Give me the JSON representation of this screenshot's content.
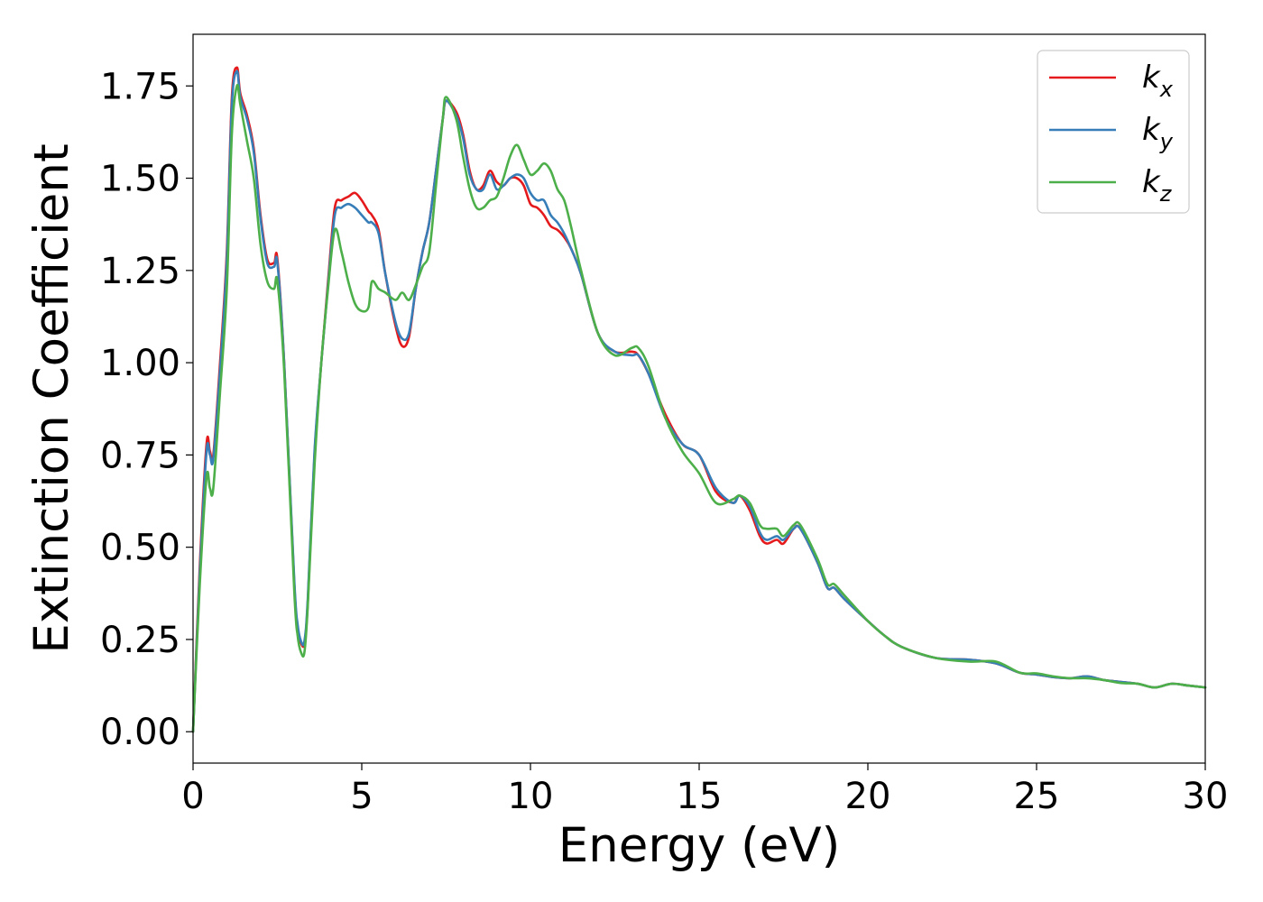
{
  "chart_data": {
    "type": "line",
    "title": "",
    "xlabel": "Energy (eV)",
    "ylabel": "Extinction Coefficient",
    "xlim": [
      0,
      30
    ],
    "ylim": [
      -0.085,
      1.89
    ],
    "xticks": [
      0,
      5,
      10,
      15,
      20,
      25,
      30
    ],
    "xtick_labels": [
      "0",
      "5",
      "10",
      "15",
      "20",
      "25",
      "30"
    ],
    "yticks": [
      0.0,
      0.25,
      0.5,
      0.75,
      1.0,
      1.25,
      1.5,
      1.75
    ],
    "ytick_labels": [
      "0.00",
      "0.25",
      "0.50",
      "0.75",
      "1.00",
      "1.25",
      "1.50",
      "1.75"
    ],
    "grid": false,
    "legend_position": "top-right",
    "series": [
      {
        "name": "k_x",
        "legend_main": "k",
        "legend_sub": "x",
        "color": "#e41a1c",
        "x": [
          0,
          0.2,
          0.4,
          0.5,
          0.6,
          0.8,
          1.0,
          1.15,
          1.3,
          1.4,
          1.6,
          1.8,
          2.0,
          2.2,
          2.4,
          2.5,
          2.7,
          3.0,
          3.1,
          3.2,
          3.3,
          3.4,
          3.6,
          3.8,
          4.0,
          4.2,
          4.4,
          4.6,
          4.8,
          5.0,
          5.2,
          5.3,
          5.5,
          5.7,
          6.0,
          6.2,
          6.4,
          6.6,
          6.8,
          7.0,
          7.2,
          7.4,
          7.5,
          7.8,
          8.0,
          8.2,
          8.4,
          8.6,
          8.8,
          9.0,
          9.2,
          9.4,
          9.6,
          9.8,
          10.0,
          10.2,
          10.4,
          10.6,
          10.8,
          11.0,
          11.2,
          11.5,
          12.0,
          12.5,
          13.0,
          13.2,
          13.5,
          14.0,
          14.5,
          15.0,
          15.5,
          16.0,
          16.2,
          16.5,
          16.8,
          17.0,
          17.3,
          17.5,
          17.8,
          18.0,
          18.5,
          18.8,
          19.0,
          19.3,
          20.0,
          20.5,
          21.0,
          22.0,
          23.0,
          23.8,
          24.5,
          25.0,
          25.5,
          26.0,
          26.5,
          27.0,
          27.5,
          28.0,
          28.5,
          29.0,
          29.5,
          30.0
        ],
        "y": [
          0.0,
          0.45,
          0.78,
          0.76,
          0.75,
          1.0,
          1.3,
          1.72,
          1.8,
          1.73,
          1.67,
          1.58,
          1.4,
          1.28,
          1.27,
          1.28,
          1.0,
          0.4,
          0.28,
          0.24,
          0.24,
          0.35,
          0.75,
          1.0,
          1.22,
          1.42,
          1.44,
          1.45,
          1.46,
          1.44,
          1.41,
          1.4,
          1.36,
          1.24,
          1.1,
          1.045,
          1.07,
          1.2,
          1.3,
          1.38,
          1.52,
          1.66,
          1.71,
          1.68,
          1.62,
          1.52,
          1.47,
          1.48,
          1.52,
          1.49,
          1.48,
          1.5,
          1.5,
          1.48,
          1.43,
          1.42,
          1.4,
          1.37,
          1.36,
          1.34,
          1.31,
          1.24,
          1.08,
          1.03,
          1.03,
          1.02,
          0.97,
          0.86,
          0.78,
          0.75,
          0.65,
          0.62,
          0.64,
          0.6,
          0.53,
          0.51,
          0.52,
          0.51,
          0.55,
          0.55,
          0.46,
          0.39,
          0.39,
          0.36,
          0.3,
          0.26,
          0.23,
          0.2,
          0.195,
          0.185,
          0.16,
          0.155,
          0.148,
          0.145,
          0.15,
          0.14,
          0.135,
          0.13,
          0.12,
          0.13,
          0.125,
          0.12
        ]
      },
      {
        "name": "k_y",
        "legend_main": "k",
        "legend_sub": "y",
        "color": "#377eb8",
        "x": [
          0,
          0.2,
          0.4,
          0.5,
          0.6,
          0.8,
          1.0,
          1.15,
          1.3,
          1.4,
          1.6,
          1.8,
          2.0,
          2.2,
          2.4,
          2.5,
          2.7,
          3.0,
          3.1,
          3.2,
          3.3,
          3.4,
          3.6,
          3.8,
          4.0,
          4.2,
          4.4,
          4.6,
          4.8,
          5.0,
          5.2,
          5.3,
          5.5,
          5.7,
          6.0,
          6.2,
          6.4,
          6.6,
          6.8,
          7.0,
          7.2,
          7.4,
          7.5,
          7.8,
          8.0,
          8.2,
          8.4,
          8.6,
          8.8,
          9.0,
          9.2,
          9.4,
          9.6,
          9.8,
          10.0,
          10.2,
          10.4,
          10.6,
          10.8,
          11.0,
          11.2,
          11.5,
          12.0,
          12.5,
          13.0,
          13.2,
          13.5,
          14.0,
          14.5,
          15.0,
          15.5,
          16.0,
          16.2,
          16.5,
          16.8,
          17.0,
          17.3,
          17.5,
          17.8,
          18.0,
          18.5,
          18.8,
          19.0,
          19.3,
          20.0,
          20.5,
          21.0,
          22.0,
          23.0,
          23.8,
          24.5,
          25.0,
          25.5,
          26.0,
          26.5,
          27.0,
          27.5,
          28.0,
          28.5,
          29.0,
          29.5,
          30.0
        ],
        "y": [
          0.0,
          0.43,
          0.76,
          0.75,
          0.74,
          0.98,
          1.28,
          1.7,
          1.79,
          1.72,
          1.66,
          1.57,
          1.39,
          1.27,
          1.26,
          1.27,
          1.0,
          0.41,
          0.29,
          0.245,
          0.245,
          0.36,
          0.76,
          1.0,
          1.21,
          1.4,
          1.42,
          1.43,
          1.42,
          1.4,
          1.38,
          1.38,
          1.35,
          1.24,
          1.11,
          1.065,
          1.08,
          1.2,
          1.3,
          1.38,
          1.52,
          1.66,
          1.71,
          1.67,
          1.61,
          1.51,
          1.47,
          1.47,
          1.51,
          1.47,
          1.48,
          1.5,
          1.51,
          1.5,
          1.46,
          1.44,
          1.44,
          1.4,
          1.38,
          1.35,
          1.31,
          1.24,
          1.08,
          1.03,
          1.02,
          1.02,
          0.97,
          0.85,
          0.78,
          0.75,
          0.66,
          0.62,
          0.64,
          0.61,
          0.54,
          0.52,
          0.53,
          0.52,
          0.55,
          0.55,
          0.46,
          0.39,
          0.39,
          0.36,
          0.3,
          0.26,
          0.23,
          0.2,
          0.195,
          0.185,
          0.16,
          0.155,
          0.148,
          0.145,
          0.15,
          0.14,
          0.135,
          0.13,
          0.12,
          0.13,
          0.125,
          0.12
        ]
      },
      {
        "name": "k_z",
        "legend_main": "k",
        "legend_sub": "z",
        "color": "#4daf4a",
        "x": [
          0,
          0.2,
          0.4,
          0.5,
          0.6,
          0.8,
          1.0,
          1.15,
          1.3,
          1.4,
          1.6,
          1.8,
          2.0,
          2.2,
          2.4,
          2.5,
          2.7,
          3.0,
          3.1,
          3.2,
          3.3,
          3.4,
          3.6,
          3.8,
          4.0,
          4.2,
          4.4,
          4.6,
          4.8,
          5.0,
          5.2,
          5.3,
          5.5,
          5.7,
          6.0,
          6.2,
          6.4,
          6.6,
          6.8,
          7.0,
          7.2,
          7.4,
          7.5,
          7.8,
          8.0,
          8.2,
          8.4,
          8.6,
          8.8,
          9.0,
          9.2,
          9.4,
          9.6,
          9.8,
          10.0,
          10.2,
          10.4,
          10.6,
          10.8,
          11.0,
          11.2,
          11.5,
          12.0,
          12.5,
          13.0,
          13.2,
          13.5,
          14.0,
          14.5,
          15.0,
          15.5,
          16.0,
          16.2,
          16.5,
          16.8,
          17.0,
          17.3,
          17.5,
          17.8,
          18.0,
          18.5,
          18.8,
          19.0,
          19.3,
          20.0,
          20.5,
          21.0,
          22.0,
          23.0,
          23.8,
          24.5,
          25.0,
          25.5,
          26.0,
          26.5,
          27.0,
          27.5,
          28.0,
          28.5,
          29.0,
          29.5,
          30.0
        ],
        "y": [
          0.0,
          0.4,
          0.69,
          0.66,
          0.66,
          0.92,
          1.2,
          1.62,
          1.75,
          1.7,
          1.6,
          1.5,
          1.32,
          1.22,
          1.2,
          1.22,
          0.98,
          0.38,
          0.26,
          0.215,
          0.215,
          0.34,
          0.72,
          1.0,
          1.2,
          1.36,
          1.3,
          1.22,
          1.16,
          1.14,
          1.15,
          1.22,
          1.2,
          1.19,
          1.17,
          1.19,
          1.17,
          1.21,
          1.26,
          1.3,
          1.48,
          1.66,
          1.72,
          1.66,
          1.56,
          1.47,
          1.42,
          1.42,
          1.44,
          1.45,
          1.5,
          1.56,
          1.59,
          1.55,
          1.51,
          1.52,
          1.54,
          1.52,
          1.47,
          1.44,
          1.37,
          1.25,
          1.08,
          1.02,
          1.04,
          1.04,
          0.99,
          0.85,
          0.76,
          0.7,
          0.62,
          0.63,
          0.64,
          0.62,
          0.56,
          0.55,
          0.55,
          0.53,
          0.56,
          0.56,
          0.47,
          0.4,
          0.4,
          0.37,
          0.3,
          0.26,
          0.23,
          0.2,
          0.19,
          0.19,
          0.16,
          0.158,
          0.15,
          0.145,
          0.145,
          0.14,
          0.132,
          0.13,
          0.12,
          0.13,
          0.125,
          0.12
        ]
      }
    ]
  }
}
